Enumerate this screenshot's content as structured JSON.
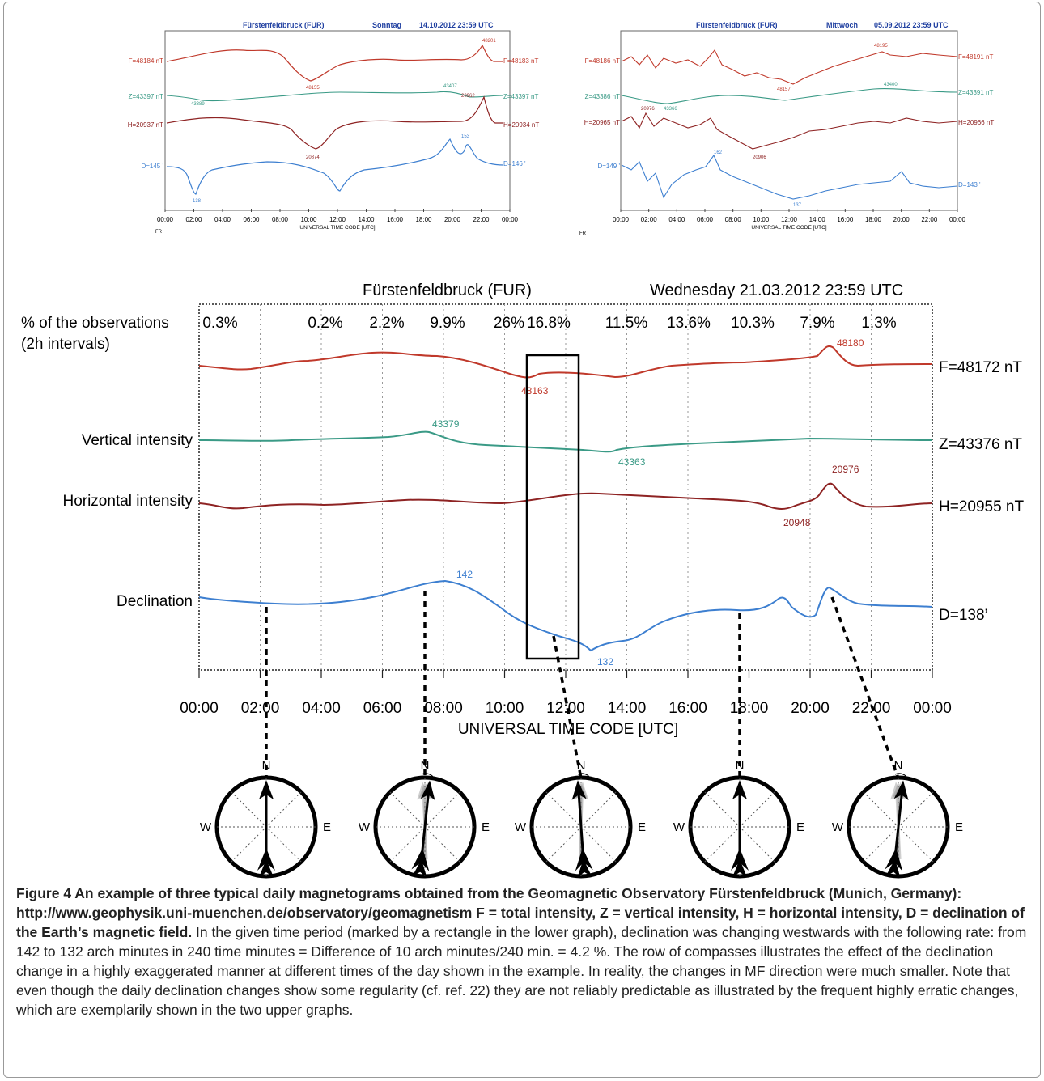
{
  "top_left": {
    "station": "Fürstenfeldbruck (FUR)",
    "day": "Sonntag",
    "date": "14.10.2012  23:59 UTC",
    "left_labels": [
      "F=48184 nT",
      "Z=43397 nT",
      "H=20937 nT",
      "D=145 '"
    ],
    "right_labels": [
      "F=48183 nT",
      "Z=43397 nT",
      "H=20934 nT",
      "D=146 '"
    ],
    "annotations": [
      "48201",
      "48155",
      "43407",
      "43389",
      "20962",
      "20874",
      "153",
      "138"
    ],
    "xticks": [
      "00:00",
      "02:00",
      "04:00",
      "06:00",
      "08:00",
      "10:00",
      "12:00",
      "14:00",
      "16:00",
      "18:00",
      "20:00",
      "22:00",
      "00:00"
    ],
    "xlabel": "UNIVERSAL TIME CODE [UTC]",
    "corner": "FR"
  },
  "top_right": {
    "station": "Fürstenfeldbruck (FUR)",
    "day": "Mittwoch",
    "date": "05.09.2012  23:59 UTC",
    "left_labels": [
      "F=48186 nT",
      "Z=43386 nT",
      "H=20965 nT",
      "D=149 '"
    ],
    "right_labels": [
      "F=48191 nT",
      "Z=43391 nT",
      "H=20966 nT",
      "D=143 '"
    ],
    "annotations": [
      "48195",
      "48157",
      "43400",
      "43366",
      "20976",
      "20906",
      "162",
      "137"
    ],
    "xticks": [
      "00:00",
      "02:00",
      "04:00",
      "06:00",
      "08:00",
      "10:00",
      "12:00",
      "14:00",
      "16:00",
      "18:00",
      "20:00",
      "22:00",
      "00:00"
    ],
    "xlabel": "UNIVERSAL TIME CODE [UTC]",
    "corner": "FR"
  },
  "main": {
    "station": "Fürstenfeldbruck (FUR)",
    "day_date": "Wednesday  21.03.2012  23:59 UTC",
    "obs_label_1": "% of the observations",
    "obs_label_2": "(2h intervals)",
    "obs_percent": [
      "0.3%",
      "0.2%",
      "2.2%",
      "9.9%",
      "26%",
      "16.8%",
      "11.5%",
      "13.6%",
      "10.3%",
      "7.9%",
      "1.3%"
    ],
    "left_labels": [
      "Vertical intensity",
      "Horizontal intensity",
      "Declination"
    ],
    "right_labels": [
      "F=48172 nT",
      "Z=43376 nT",
      "H=20955 nT",
      "D=138’"
    ],
    "annotations": [
      "48180",
      "48163",
      "43379",
      "43363",
      "20976",
      "20948",
      "142",
      "132"
    ],
    "xticks": [
      "00:00",
      "02:00",
      "04:00",
      "06:00",
      "08:00",
      "10:00",
      "12:00",
      "14:00",
      "16:00",
      "18:00",
      "20:00",
      "22:00",
      "00:00"
    ],
    "xlabel": "UNIVERSAL TIME CODE [UTC]"
  },
  "compass": {
    "n": "N",
    "s": "S",
    "e": "E",
    "w": "W"
  },
  "colors": {
    "F": "#c0392b",
    "Z": "#3a9a86",
    "H": "#8e2323",
    "D": "#3d7fd0"
  },
  "caption": {
    "bold": "Figure 4 An example of three typical daily magnetograms obtained from the Geomagnetic Observatory Fürstenfeldbruck (Munich, Germany): http://www.geophysik.uni-muenchen.de/observatory/geomagnetism F = total intensity, Z = vertical intensity, H = horizontal intensity, D = declination of the Earth’s magnetic field.",
    "text": " In the given time period (marked by a rectangle in the lower graph), declination was changing westwards with the following rate: from 142 to 132 arch minutes in 240 time minutes = Difference of 10 arch minutes/240 min. = 4.2 %. The row of compasses illustrates the effect of the declination change in a highly exaggerated manner at different times of the day shown in the example. In reality, the changes in MF direction were much smaller. Note that even though the daily declination changes show some regularity (cf. ref. 22) they are not reliably predictable as illustrated by the frequent highly erratic changes, which are exemplarily shown in the two upper graphs."
  }
}
